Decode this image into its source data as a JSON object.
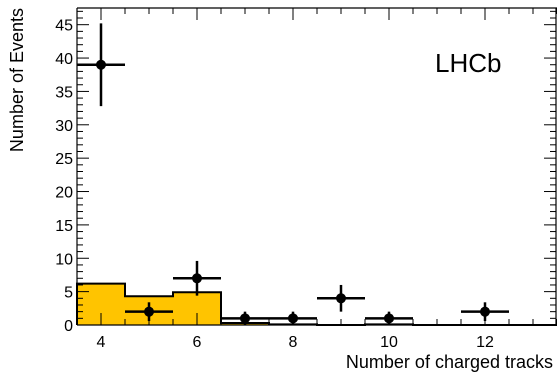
{
  "chart_data": {
    "type": "bar",
    "xlabel": "Number of charged tracks",
    "ylabel": "Number of Events",
    "experiment_label": "LHCb",
    "xlim": [
      3.5,
      13.5
    ],
    "ylim": [
      0,
      47.5
    ],
    "x_ticks": [
      4,
      6,
      8,
      10,
      12
    ],
    "y_ticks": [
      0,
      5,
      10,
      15,
      20,
      25,
      30,
      35,
      40,
      45
    ],
    "grid": false,
    "histogram": {
      "bin_width": 1,
      "bins": [
        {
          "x": 4,
          "value": 6.2
        },
        {
          "x": 5,
          "value": 4.3
        },
        {
          "x": 6,
          "value": 4.9
        },
        {
          "x": 7,
          "value": 0.3
        },
        {
          "x": 8,
          "value": 0.1
        },
        {
          "x": 9,
          "value": 0.0
        },
        {
          "x": 10,
          "value": 0.1
        },
        {
          "x": 11,
          "value": 0.0
        },
        {
          "x": 12,
          "value": 0.0
        },
        {
          "x": 13,
          "value": 0.0
        }
      ],
      "fill_color": "#ffc400",
      "line_color": "#000000"
    },
    "data_points": [
      {
        "x": 4,
        "y": 39,
        "y_err": 6.2
      },
      {
        "x": 5,
        "y": 2,
        "y_err": 1.4
      },
      {
        "x": 6,
        "y": 7,
        "y_err": 2.6
      },
      {
        "x": 7,
        "y": 1,
        "y_err": 1.0
      },
      {
        "x": 8,
        "y": 1,
        "y_err": 1.0
      },
      {
        "x": 9,
        "y": 4,
        "y_err": 2.0
      },
      {
        "x": 10,
        "y": 1,
        "y_err": 1.0
      },
      {
        "x": 12,
        "y": 2,
        "y_err": 1.4
      }
    ],
    "marker_color": "#000000"
  }
}
